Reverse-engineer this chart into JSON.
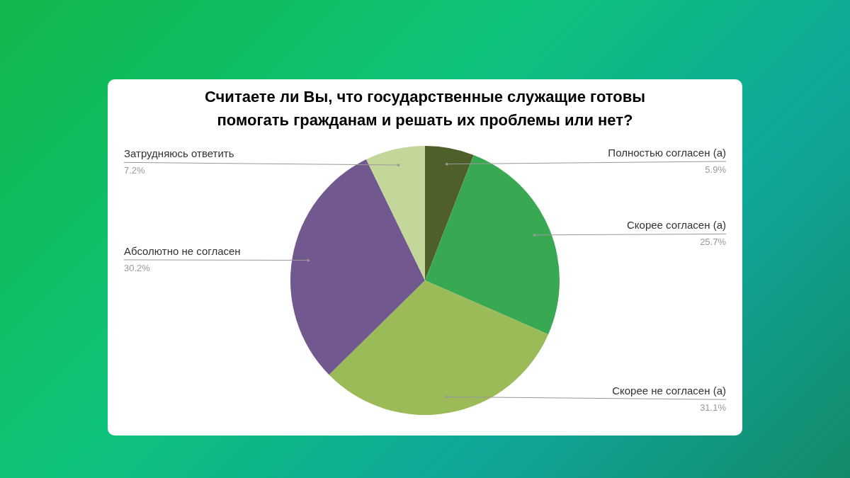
{
  "chart_data": {
    "type": "pie",
    "title": "Считаете ли Вы, что государственные служащие готовы помогать гражданам и решать их проблемы или нет?",
    "categories": [
      "Полностью согласен (а)",
      "Скорее согласен (а)",
      "Скорее не согласен (а)",
      "Абсолютно не согласен",
      "Затрудняюсь ответить"
    ],
    "values": [
      5.9,
      25.7,
      31.1,
      30.2,
      7.2
    ],
    "colors": [
      "#4e5f2a",
      "#38a853",
      "#9bbb59",
      "#71588f",
      "#c4d79b"
    ],
    "value_labels": [
      "5.9%",
      "25.7%",
      "31.1%",
      "30.2%",
      "7.2%"
    ]
  }
}
